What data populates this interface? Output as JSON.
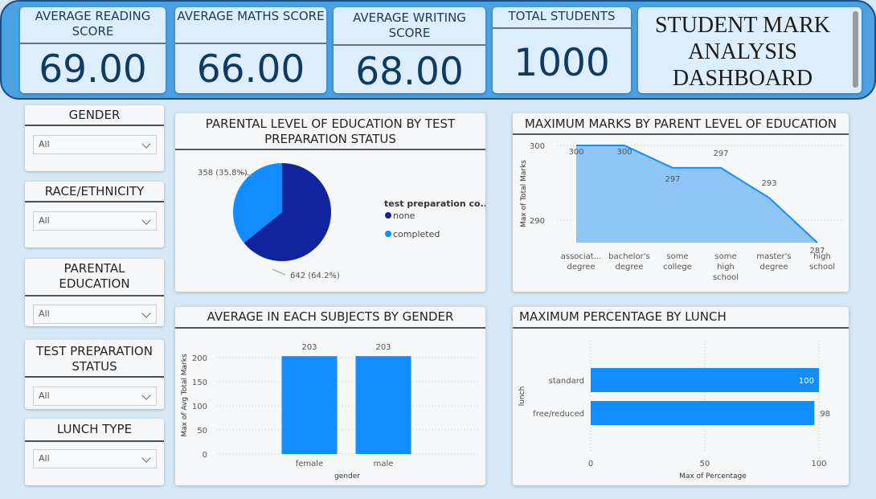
{
  "kpis": {
    "reading": {
      "label": "AVERAGE READING SCORE",
      "value": "69.00"
    },
    "maths": {
      "label": "AVERAGE MATHS SCORE",
      "value": "66.00"
    },
    "writing": {
      "label": "AVERAGE WRITING SCORE",
      "value": "68.00"
    },
    "students": {
      "label": "TOTAL STUDENTS",
      "value": "1000"
    }
  },
  "dashboard_title": "STUDENT MARK ANALYSIS DASHBOARD",
  "filters": [
    {
      "title": "GENDER",
      "value": "All"
    },
    {
      "title": "RACE/ETHNICITY",
      "value": "All"
    },
    {
      "title": "PARENTAL EDUCATION",
      "value": "All"
    },
    {
      "title": "TEST PREPARATION STATUS",
      "value": "All"
    },
    {
      "title": "LUNCH TYPE",
      "value": "All"
    }
  ],
  "colors": {
    "banner": "#4ba1e2",
    "none": "#12239e",
    "completed": "#118dff",
    "area_fill": "#8fc4f7",
    "area_line": "#118dff",
    "bar": "#118dff"
  },
  "icons": [
    "chevron-down-icon"
  ],
  "chart_data": [
    {
      "type": "pie",
      "title": "PARENTAL LEVEL OF EDUCATION BY TEST PREPARATION STATUS",
      "legend_title": "test preparation co...",
      "legend_position": "right",
      "slices": [
        {
          "name": "none",
          "value": 642,
          "label": "642 (64.2%)"
        },
        {
          "name": "completed",
          "value": 358,
          "label": "358 (35.8%)"
        }
      ]
    },
    {
      "type": "area",
      "title": "MAXIMUM MARKS BY PARENT LEVEL OF EDUCATION",
      "ylabel": "Max of Total Marks",
      "xlabel": "",
      "categories": [
        "associat... degree",
        "bachelor's degree",
        "some college",
        "some high school",
        "master's degree",
        "high school"
      ],
      "values": [
        300,
        300,
        297,
        297,
        293,
        287
      ],
      "ylim": [
        287,
        300
      ],
      "yticks": [
        290,
        300
      ],
      "grid": true
    },
    {
      "type": "bar",
      "title": "AVERAGE IN EACH SUBJECTS BY GENDER",
      "ylabel": "Max of Avg Total Marks",
      "xlabel": "gender",
      "categories": [
        "female",
        "male"
      ],
      "values": [
        203,
        203
      ],
      "ylim": [
        0,
        200
      ],
      "yticks": [
        0,
        50,
        100,
        150,
        200
      ],
      "grid": true
    },
    {
      "type": "bar",
      "orientation": "horizontal",
      "title": "MAXIMUM PERCENTAGE BY LUNCH",
      "ylabel": "lunch",
      "xlabel": "Max of Percentage",
      "categories": [
        "standard",
        "free/reduced"
      ],
      "values": [
        100,
        98
      ],
      "xlim": [
        0,
        100
      ],
      "xticks": [
        0,
        50,
        100
      ],
      "grid": true
    }
  ]
}
